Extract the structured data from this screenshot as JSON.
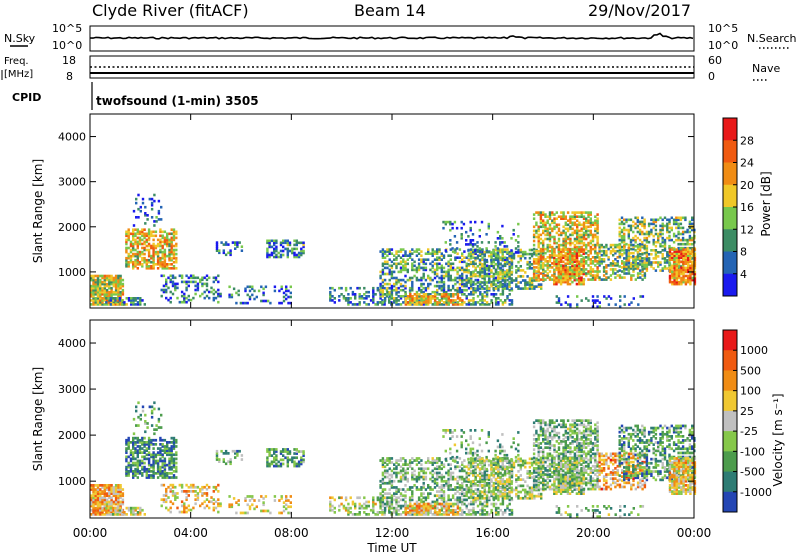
{
  "header": {
    "station": "Clyde River (fitACF)",
    "beam": "Beam 14",
    "date": "29/Nov/2017"
  },
  "top_panels": {
    "nsky_label": "N.Sky",
    "nsky_ticks": [
      "10^5",
      "10^0"
    ],
    "nsearch_label": "N.Search",
    "nsearch_ticks": [
      "10^5",
      "10^0"
    ],
    "freq_label_1": "Freq.",
    "freq_label_2": "[MHz]",
    "freq_ticks": [
      "18",
      "8"
    ],
    "nave_label": "Nave",
    "nave_ticks": [
      "60",
      "0"
    ],
    "cpid_label": "CPID",
    "cpid_text": "twofsound (1-min) 3505"
  },
  "chart_data": [
    {
      "type": "heatmap",
      "panel": "power",
      "xlabel": "",
      "ylabel": "Slant Range [km]",
      "y_ticks": [
        "1000",
        "2000",
        "3000",
        "4000"
      ],
      "ylim": [
        200,
        4500
      ],
      "x_ticks": [
        "00:00",
        "04:00",
        "08:00",
        "12:00",
        "16:00",
        "20:00",
        "00:00"
      ],
      "colorbar_label": "Power [dB]",
      "colorbar_ticks": [
        "4",
        "8",
        "12",
        "16",
        "20",
        "24",
        "28"
      ],
      "colorbar_range": [
        0,
        32
      ],
      "colors": [
        "#1a1aee",
        "#2464b4",
        "#3c8c64",
        "#78c84c",
        "#f0c828",
        "#f08c14",
        "#f05a10",
        "#e81818"
      ]
    },
    {
      "type": "heatmap",
      "panel": "velocity",
      "xlabel": "Time UT",
      "ylabel": "Slant Range [km]",
      "y_ticks": [
        "1000",
        "2000",
        "3000",
        "4000"
      ],
      "ylim": [
        200,
        4500
      ],
      "x_ticks": [
        "00:00",
        "04:00",
        "08:00",
        "12:00",
        "16:00",
        "20:00",
        "00:00"
      ],
      "colorbar_label": "Velocity [m s⁻¹]",
      "colorbar_ticks": [
        "1000",
        "500",
        "100",
        "25",
        "-25",
        "-100",
        "-500",
        "-1000"
      ],
      "colors": [
        "#2446b4",
        "#2e7c74",
        "#4c9c4c",
        "#86c84a",
        "#c0c0c0",
        "#f0c832",
        "#f08c14",
        "#f05a10",
        "#e81818"
      ]
    }
  ]
}
